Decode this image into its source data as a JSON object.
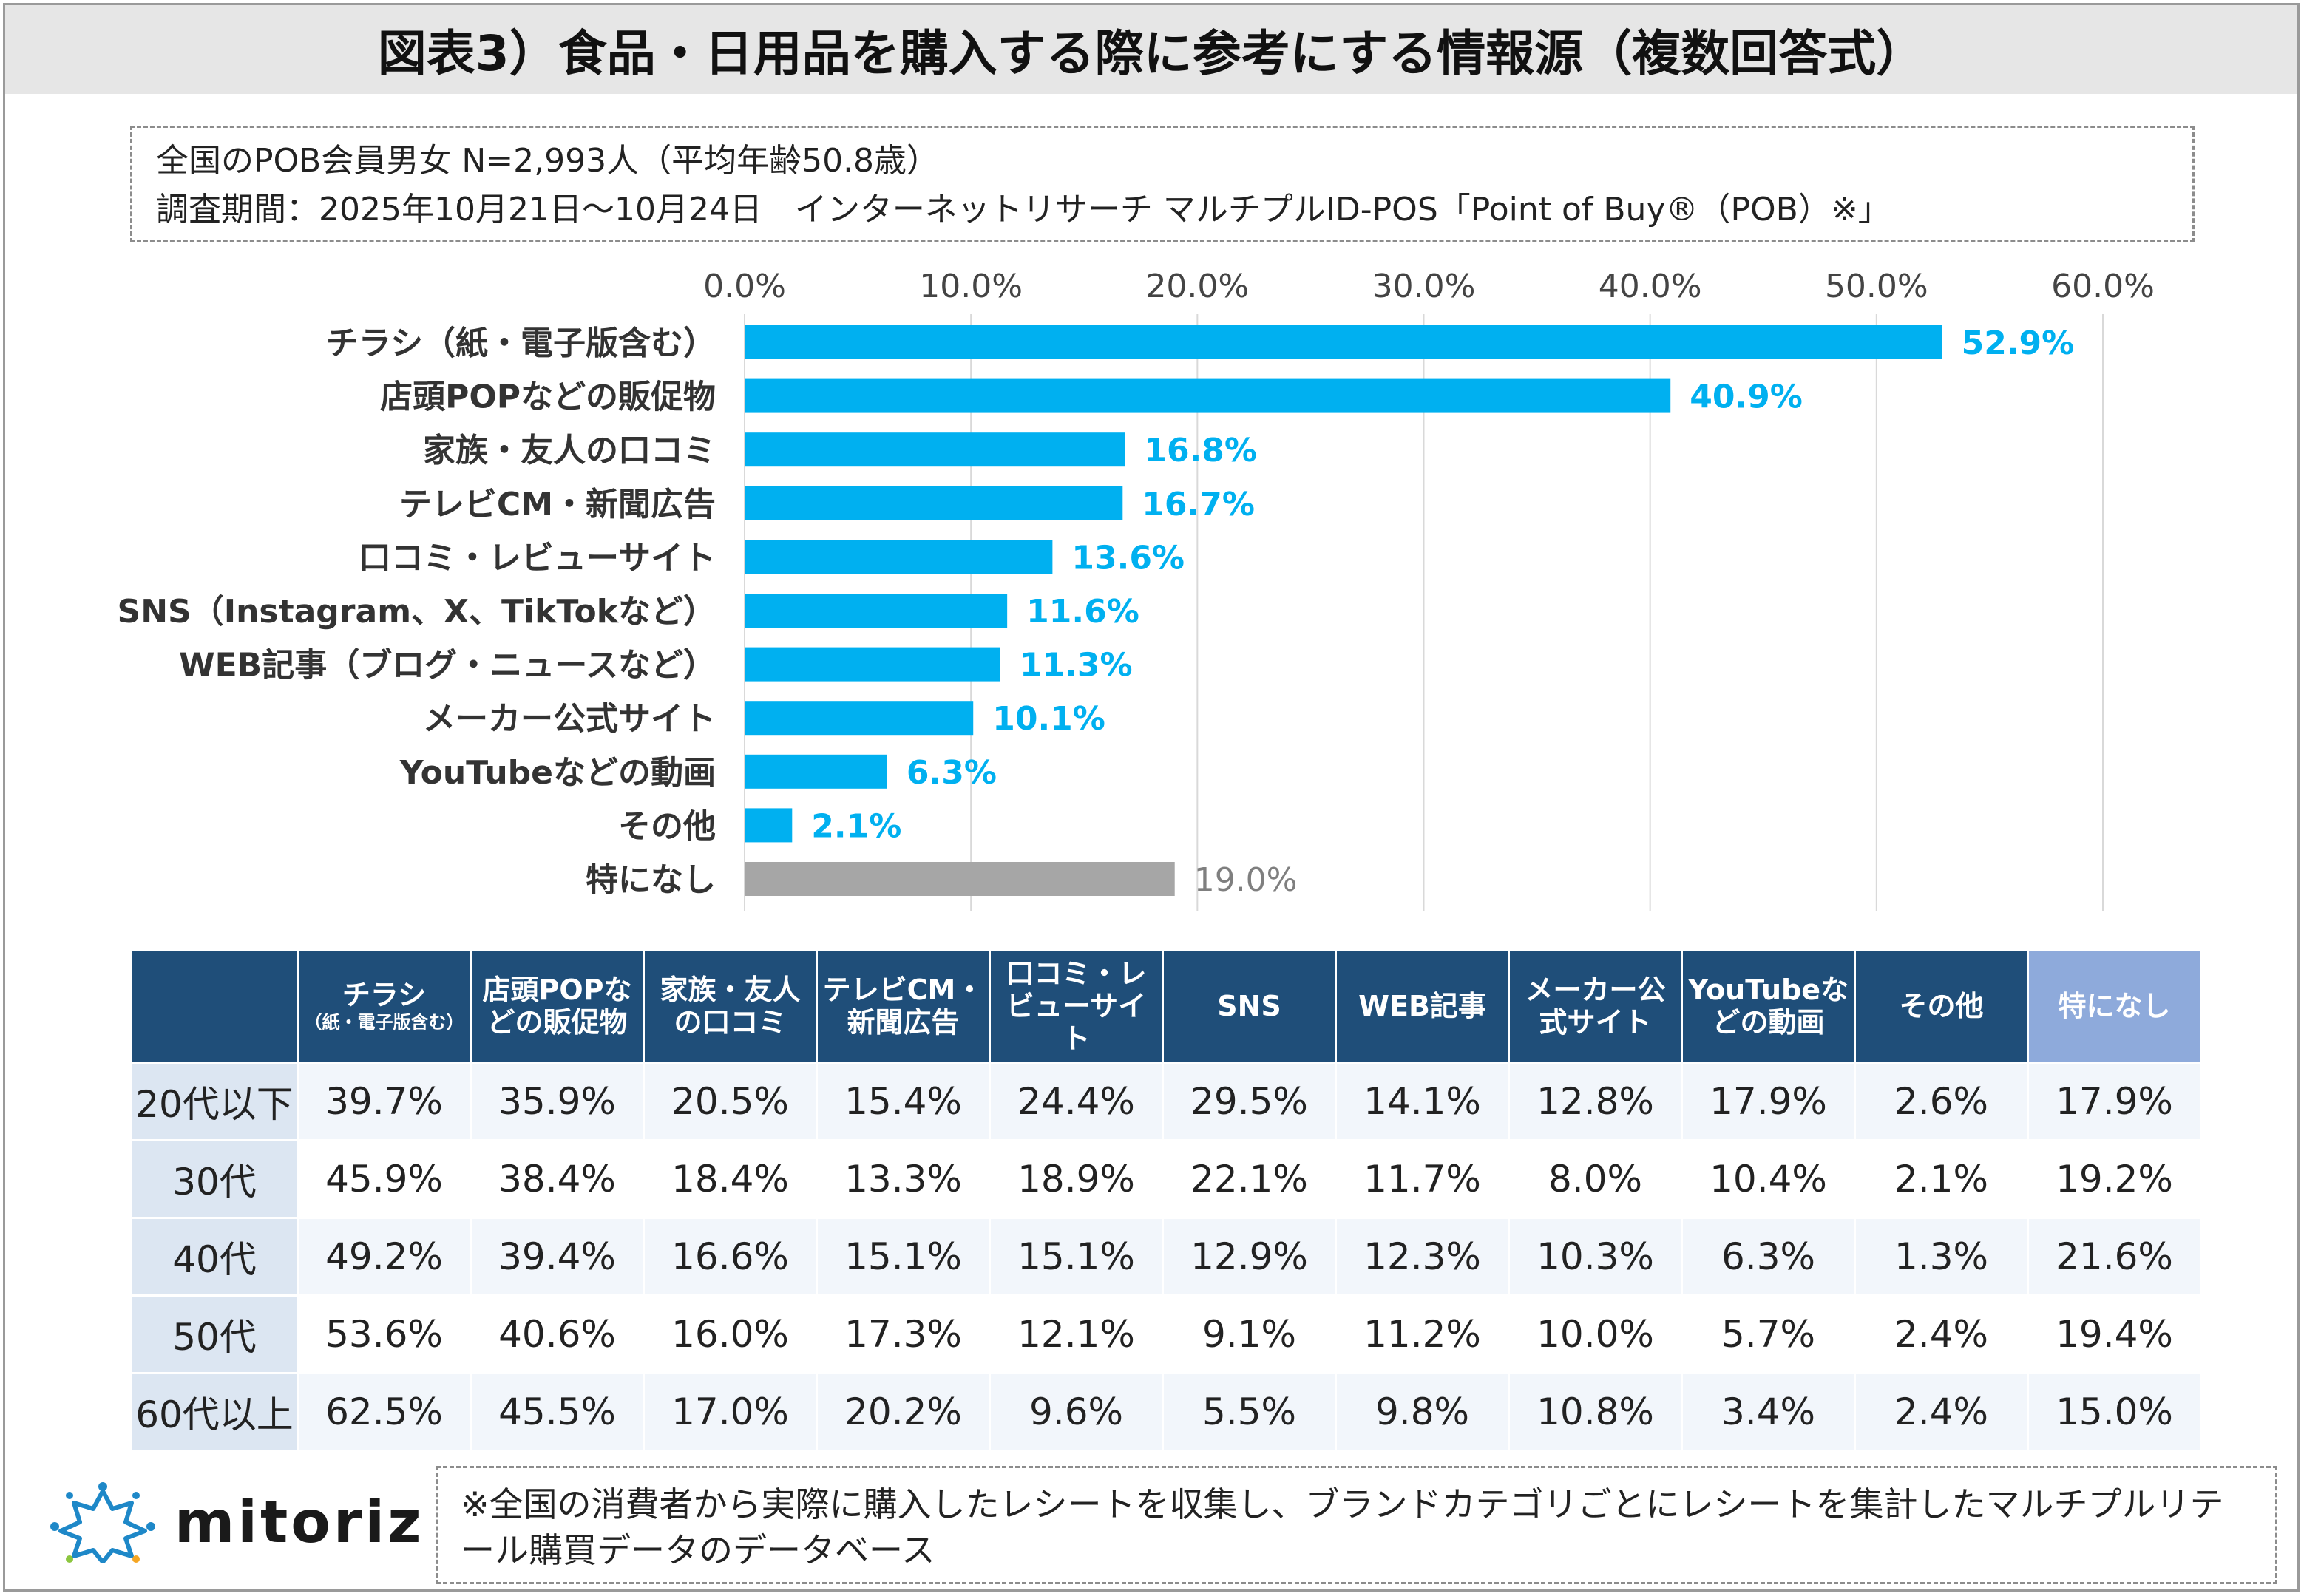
{
  "title": "図表3）食品・日用品を購入する際に参考にする情報源（複数回答式）",
  "info": {
    "line1": "全国のPOB会員男女 N=2,993人（平均年齢50.8歳）",
    "line2": "調査期間：2025年10月21日～10月24日　インターネットリサーチ マルチプルID-POS「Point of Buy®（POB）※」"
  },
  "colors": {
    "bar": "#00b0f0",
    "bar_none": "#a6a6a6",
    "label": "#00b0f0",
    "label_none": "#7f7f7f"
  },
  "chart_data": {
    "type": "bar",
    "orientation": "horizontal",
    "categories": [
      "チラシ（紙・電子版含む）",
      "店頭POPなどの販促物",
      "家族・友人の口コミ",
      "テレビCM・新聞広告",
      "口コミ・レビューサイト",
      "SNS（Instagram、X、TikTokなど）",
      "WEB記事（ブログ・ニュースなど）",
      "メーカー公式サイト",
      "YouTubeなどの動画",
      "その他",
      "特になし"
    ],
    "values": [
      52.9,
      40.9,
      16.8,
      16.7,
      13.6,
      11.6,
      11.3,
      10.1,
      6.3,
      2.1,
      19.0
    ],
    "value_labels": [
      "52.9%",
      "40.9%",
      "16.8%",
      "16.7%",
      "13.6%",
      "11.6%",
      "11.3%",
      "10.1%",
      "6.3%",
      "2.1%",
      "19.0%"
    ],
    "xlim": [
      0,
      60
    ],
    "ticks": [
      "0.0%",
      "10.0%",
      "20.0%",
      "30.0%",
      "40.0%",
      "50.0%",
      "60.0%"
    ],
    "tick_values": [
      0,
      10,
      20,
      30,
      40,
      50,
      60
    ],
    "grid": true
  },
  "table": {
    "headers": [
      {
        "main": "チラシ",
        "sub": "（紙・電子版含む）"
      },
      {
        "main": "店頭POPなどの販促物",
        "sub": ""
      },
      {
        "main": "家族・友人の口コミ",
        "sub": ""
      },
      {
        "main": "テレビCM・新聞広告",
        "sub": ""
      },
      {
        "main": "口コミ・レビューサイト",
        "sub": ""
      },
      {
        "main": "SNS",
        "sub": ""
      },
      {
        "main": "WEB記事",
        "sub": ""
      },
      {
        "main": "メーカー公式サイト",
        "sub": ""
      },
      {
        "main": "YouTubeなどの動画",
        "sub": ""
      },
      {
        "main": "その他",
        "sub": ""
      },
      {
        "main": "特になし",
        "sub": ""
      }
    ],
    "rows": [
      {
        "label": "20代以下",
        "values": [
          "39.7%",
          "35.9%",
          "20.5%",
          "15.4%",
          "24.4%",
          "29.5%",
          "14.1%",
          "12.8%",
          "17.9%",
          "2.6%",
          "17.9%"
        ]
      },
      {
        "label": "30代",
        "values": [
          "45.9%",
          "38.4%",
          "18.4%",
          "13.3%",
          "18.9%",
          "22.1%",
          "11.7%",
          "8.0%",
          "10.4%",
          "2.1%",
          "19.2%"
        ]
      },
      {
        "label": "40代",
        "values": [
          "49.2%",
          "39.4%",
          "16.6%",
          "15.1%",
          "15.1%",
          "12.9%",
          "12.3%",
          "10.3%",
          "6.3%",
          "1.3%",
          "21.6%"
        ]
      },
      {
        "label": "50代",
        "values": [
          "53.6%",
          "40.6%",
          "16.0%",
          "17.3%",
          "12.1%",
          "9.1%",
          "11.2%",
          "10.0%",
          "5.7%",
          "2.4%",
          "19.4%"
        ]
      },
      {
        "label": "60代以上",
        "values": [
          "62.5%",
          "45.5%",
          "17.0%",
          "20.2%",
          "9.6%",
          "5.5%",
          "9.8%",
          "10.8%",
          "3.4%",
          "2.4%",
          "15.0%"
        ]
      }
    ]
  },
  "logo": {
    "text": "mitoriz",
    "icon": "sparkle-ring-logo-icon"
  },
  "note": "※全国の消費者から実際に購入したレシートを収集し、ブランドカテゴリごとにレシートを集計したマルチプルリテール購買データのデータベース"
}
